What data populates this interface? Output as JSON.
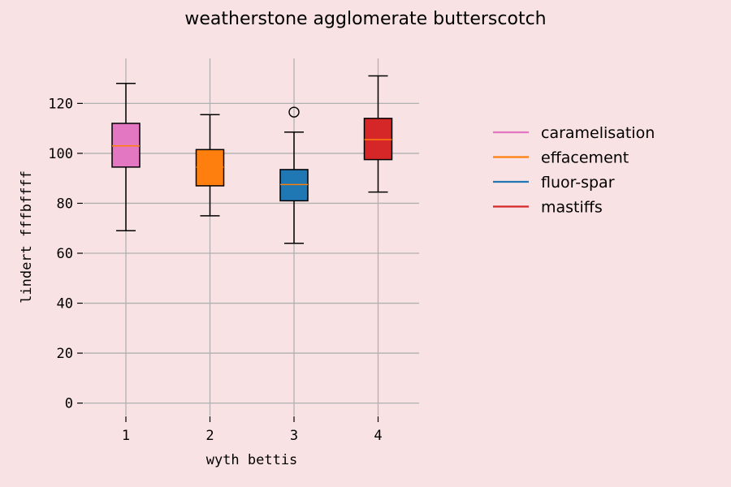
{
  "chart_data": {
    "type": "boxplot",
    "title": "weatherstone agglomerate butterscotch",
    "xlabel": "wyth bettis",
    "ylabel": "lindert fffbffff",
    "categories": [
      "1",
      "2",
      "3",
      "4"
    ],
    "ylim": [
      -5,
      138
    ],
    "yticks": [
      0,
      20,
      40,
      60,
      80,
      100,
      120
    ],
    "grid": true,
    "legend_position": "right",
    "series": [
      {
        "name": "caramelisation",
        "color": "#e377c2",
        "whisker_low": 69,
        "q1": 94.5,
        "median": 103,
        "q3": 112,
        "whisker_high": 128,
        "outliers": []
      },
      {
        "name": "effacement",
        "color": "#ff7f0e",
        "whisker_low": 75,
        "q1": 87,
        "median": 94.5,
        "q3": 101.5,
        "whisker_high": 115.5,
        "outliers": []
      },
      {
        "name": "fluor-spar",
        "color": "#1f77b4",
        "whisker_low": 64,
        "q1": 81,
        "median": 87.5,
        "q3": 93.5,
        "whisker_high": 108.5,
        "outliers": [
          116.5
        ]
      },
      {
        "name": "mastiffs",
        "color": "#d62728",
        "whisker_low": 84.5,
        "q1": 97.5,
        "median": 105.5,
        "q3": 114,
        "whisker_high": 131,
        "outliers": []
      }
    ],
    "median_color": "#ff7f0e"
  }
}
